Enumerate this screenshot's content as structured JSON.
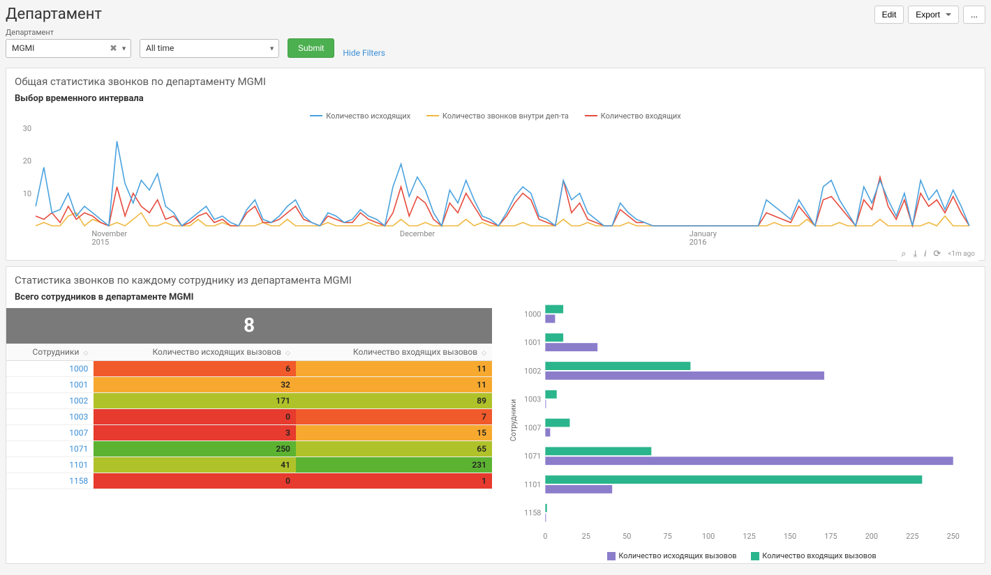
{
  "header": {
    "title": "Департамент",
    "edit": "Edit",
    "export": "Export",
    "more": "..."
  },
  "filters": {
    "dept_label": "Департамент",
    "dept_value": "MGMI",
    "time_value": "All time",
    "submit": "Submit",
    "hide_filters": "Hide Filters"
  },
  "panel1": {
    "title": "Общая статистика звонков по департаменту MGMI",
    "subtitle": "Выбор временного интервала",
    "legend": {
      "outgoing": "Количество исходящих",
      "internal": "Количество звонков внутри деп-та",
      "incoming": "Количество входящих"
    },
    "colors": {
      "outgoing": "#4aa3df",
      "internal": "#f0b840",
      "incoming": "#e64b3c"
    },
    "y_ticks": [
      10,
      20,
      30
    ],
    "x_ticks": [
      {
        "pos": 0.06,
        "l1": "November",
        "l2": "2015"
      },
      {
        "pos": 0.39,
        "l1": "December",
        "l2": ""
      },
      {
        "pos": 0.7,
        "l1": "January",
        "l2": "2016"
      }
    ],
    "series": {
      "outgoing": [
        6,
        18,
        4,
        5,
        10,
        3,
        6,
        4,
        2,
        0,
        26,
        13,
        7,
        14,
        11,
        16,
        6,
        4,
        0,
        2,
        4,
        6,
        2,
        3,
        1,
        0,
        5,
        8,
        2,
        1,
        3,
        6,
        8,
        3,
        1,
        0,
        4,
        3,
        1,
        2,
        5,
        3,
        2,
        0,
        12,
        19,
        9,
        15,
        11,
        4,
        0,
        11,
        7,
        14,
        8,
        3,
        2,
        0,
        4,
        9,
        12,
        10,
        3,
        2,
        0,
        14,
        8,
        10,
        4,
        2,
        0,
        0,
        7,
        4,
        2,
        1,
        0,
        0,
        0,
        0,
        0,
        0,
        0,
        0,
        0,
        0,
        0,
        0,
        0,
        0,
        8,
        6,
        4,
        2,
        8,
        4,
        0,
        12,
        14,
        8,
        4,
        0,
        12,
        7,
        14,
        8,
        3,
        10,
        0,
        14,
        8,
        11,
        5,
        11,
        6,
        0
      ],
      "internal": [
        0,
        1,
        0,
        0,
        3,
        4,
        0,
        2,
        1,
        0,
        1,
        0,
        2,
        4,
        0,
        0,
        1,
        0,
        0,
        0,
        2,
        0,
        0,
        1,
        0,
        0,
        0,
        0,
        1,
        0,
        0,
        2,
        0,
        0,
        0,
        0,
        1,
        0,
        0,
        0,
        0,
        1,
        0,
        0,
        0,
        2,
        0,
        0,
        1,
        0,
        0,
        0,
        0,
        2,
        0,
        1,
        0,
        0,
        0,
        0,
        1,
        0,
        0,
        0,
        0,
        2,
        0,
        0,
        1,
        0,
        0,
        0,
        0,
        1,
        0,
        0,
        0,
        0,
        0,
        0,
        0,
        0,
        0,
        0,
        0,
        0,
        0,
        0,
        0,
        0,
        0,
        1,
        0,
        0,
        0,
        2,
        0,
        0,
        0,
        1,
        0,
        0,
        0,
        0,
        2,
        0,
        0,
        0,
        0,
        0,
        1,
        0,
        3,
        0,
        0,
        0
      ],
      "incoming": [
        3,
        2,
        4,
        1,
        6,
        2,
        4,
        3,
        1,
        0,
        12,
        3,
        10,
        6,
        4,
        8,
        2,
        3,
        0,
        1,
        3,
        4,
        1,
        2,
        0,
        0,
        4,
        6,
        1,
        1,
        2,
        4,
        6,
        2,
        1,
        0,
        3,
        2,
        1,
        1,
        4,
        2,
        1,
        0,
        4,
        12,
        3,
        9,
        7,
        2,
        0,
        7,
        4,
        10,
        6,
        2,
        1,
        0,
        3,
        7,
        10,
        8,
        2,
        1,
        0,
        14,
        4,
        7,
        2,
        1,
        0,
        0,
        5,
        3,
        1,
        1,
        0,
        0,
        0,
        0,
        0,
        0,
        0,
        0,
        0,
        0,
        0,
        0,
        0,
        0,
        4,
        3,
        2,
        1,
        6,
        3,
        0,
        8,
        9,
        6,
        3,
        0,
        8,
        5,
        15,
        6,
        2,
        8,
        0,
        10,
        6,
        8,
        4,
        9,
        4,
        0
      ]
    },
    "toolbar_timestamp": "<1m ago"
  },
  "panel2": {
    "title": "Статистика звонков по каждому сотруднику из департамента MGMI",
    "subtitle": "Всего сотрудников в департаменте MGMI",
    "count": "8",
    "columns": [
      "Сотрудники",
      "Количество исходящих вызовов",
      "Количество входящих вызовов"
    ],
    "rows": [
      {
        "emp": "1000",
        "out": 6,
        "out_color": "#f15a2b",
        "in": 11,
        "in_color": "#f7a92f"
      },
      {
        "emp": "1001",
        "out": 32,
        "out_color": "#f7a92f",
        "in": 11,
        "in_color": "#f7a92f"
      },
      {
        "emp": "1002",
        "out": 171,
        "out_color": "#b0c22a",
        "in": 89,
        "in_color": "#b0c22a"
      },
      {
        "emp": "1003",
        "out": 0,
        "out_color": "#e63b2e",
        "in": 7,
        "in_color": "#f15a2b"
      },
      {
        "emp": "1007",
        "out": 3,
        "out_color": "#e63b2e",
        "in": 15,
        "in_color": "#f7a92f"
      },
      {
        "emp": "1071",
        "out": 250,
        "out_color": "#5cb331",
        "in": 65,
        "in_color": "#b0c22a"
      },
      {
        "emp": "1101",
        "out": 41,
        "out_color": "#b0c22a",
        "in": 231,
        "in_color": "#5cb331"
      },
      {
        "emp": "1158",
        "out": 0,
        "out_color": "#e63b2e",
        "in": 1,
        "in_color": "#e63b2e"
      }
    ],
    "barchart": {
      "y_label": "Сотрудники",
      "x_ticks": [
        0,
        25,
        50,
        75,
        100,
        125,
        150,
        175,
        200,
        225,
        250
      ],
      "x_max": 260,
      "colors": {
        "out": "#8c7dcb",
        "in": "#2bb58c"
      },
      "legend": {
        "out": "Количество исходящих вызовов",
        "in": "Количество входящих вызовов"
      }
    }
  }
}
